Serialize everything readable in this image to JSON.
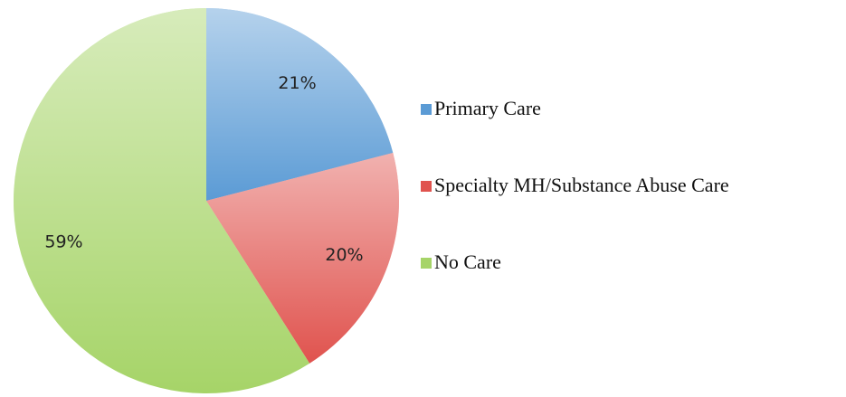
{
  "chart_data": {
    "type": "pie",
    "categories": [
      "Primary Care",
      "Specialty MH/Substance Abuse Care",
      "No Care"
    ],
    "values": [
      21,
      20,
      59
    ],
    "value_labels": [
      "21%",
      "20%",
      "59%"
    ],
    "colors": [
      "#5b9bd5",
      "#e0534e",
      "#a6d468"
    ],
    "legend": "right"
  }
}
